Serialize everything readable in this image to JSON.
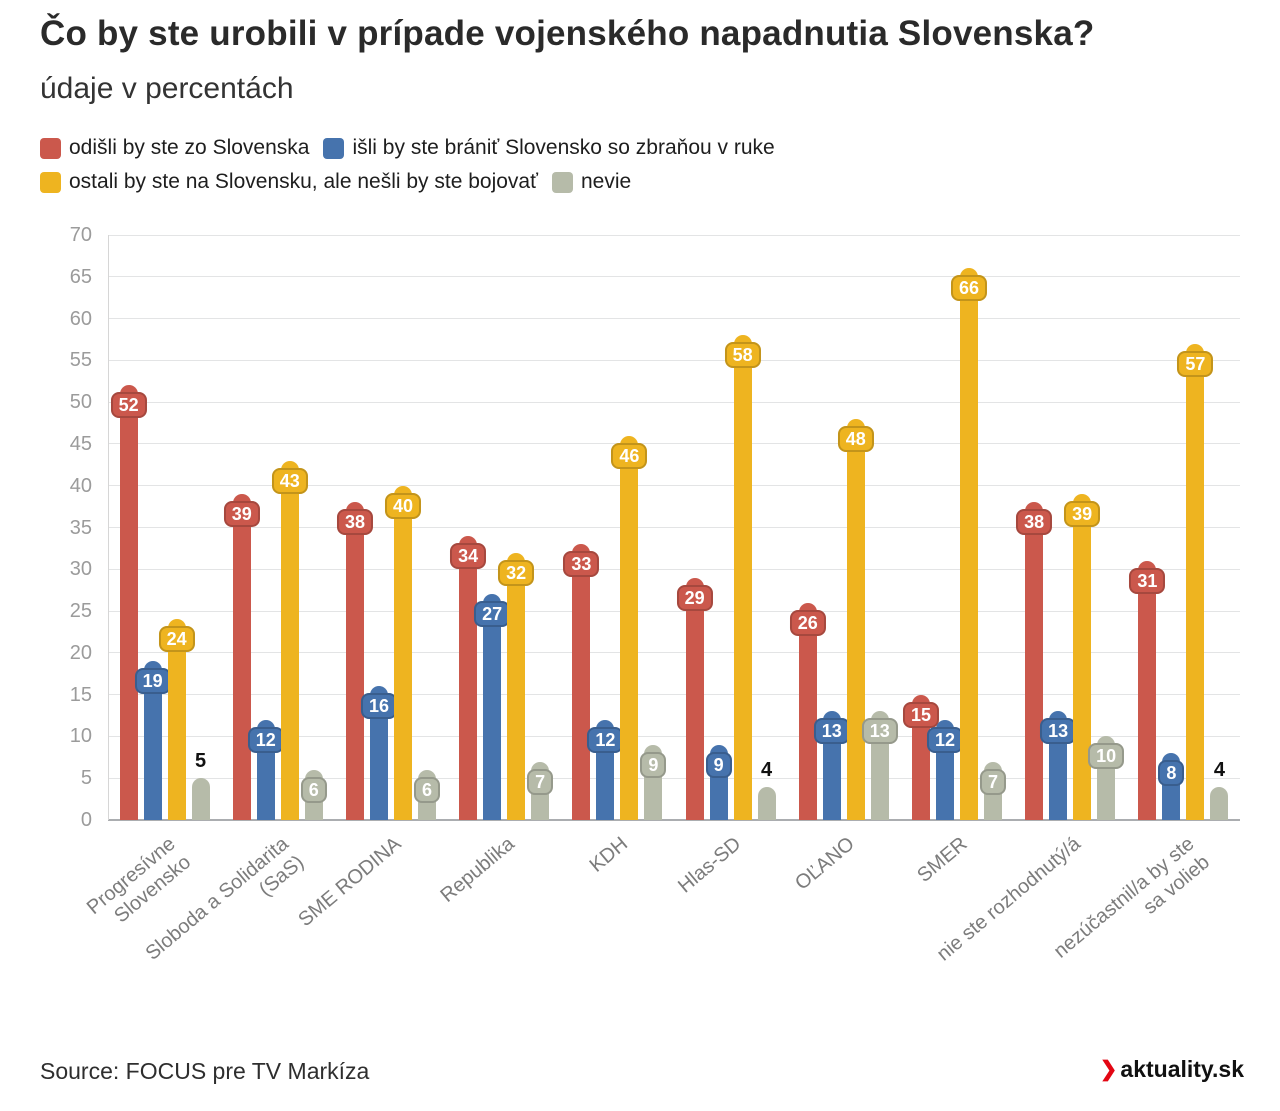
{
  "header": {
    "title": "Čo by ste urobili v prípade vojenského napadnutia Slovenska?",
    "subtitle": "údaje v percentách"
  },
  "legend": [
    {
      "label": "odišli by ste zo Slovenska",
      "color": "#cb584c"
    },
    {
      "label": "išli by ste brániť Slovensko so zbraňou v ruke",
      "color": "#4673ad"
    },
    {
      "label": "ostali by ste na Slovensku, ale nešli by ste bojovať",
      "color": "#eeb420"
    },
    {
      "label": "nevie",
      "color": "#b6bba9"
    }
  ],
  "chart_data": {
    "type": "bar",
    "title": "Čo by ste urobili v prípade vojenského napadnutia Slovenska?",
    "subtitle": "údaje v percentách",
    "xlabel": "",
    "ylabel": "",
    "ylim": [
      0,
      70
    ],
    "ytick_step": 5,
    "grid": true,
    "legend_position": "top",
    "categories": [
      "Progresívne\nSlovensko",
      "Sloboda a Solidarita\n(SaS)",
      "SME RODINA",
      "Republika",
      "KDH",
      "Hlas-SD",
      "OĽANO",
      "SMER",
      "nie ste rozhodnutý/á",
      "nezúčastnil/a by ste\nsa volieb"
    ],
    "series": [
      {
        "name": "odišli by ste zo Slovenska",
        "color": "#cb584c",
        "values": [
          52,
          39,
          38,
          34,
          33,
          29,
          26,
          15,
          38,
          31
        ]
      },
      {
        "name": "išli by ste brániť Slovensko so zbraňou v ruke",
        "color": "#4673ad",
        "values": [
          19,
          12,
          16,
          27,
          12,
          9,
          13,
          12,
          13,
          8
        ]
      },
      {
        "name": "ostali by ste na Slovensku, ale nešli by ste bojovať",
        "color": "#eeb420",
        "values": [
          24,
          43,
          40,
          32,
          46,
          58,
          48,
          66,
          39,
          57
        ]
      },
      {
        "name": "nevie",
        "color": "#b6bba9",
        "values": [
          5,
          6,
          6,
          7,
          9,
          4,
          13,
          7,
          10,
          4
        ]
      }
    ]
  },
  "footer": {
    "source": "Source: FOCUS pre TV Markíza",
    "brand": "aktuality.sk",
    "brand_arrow": "❯"
  }
}
